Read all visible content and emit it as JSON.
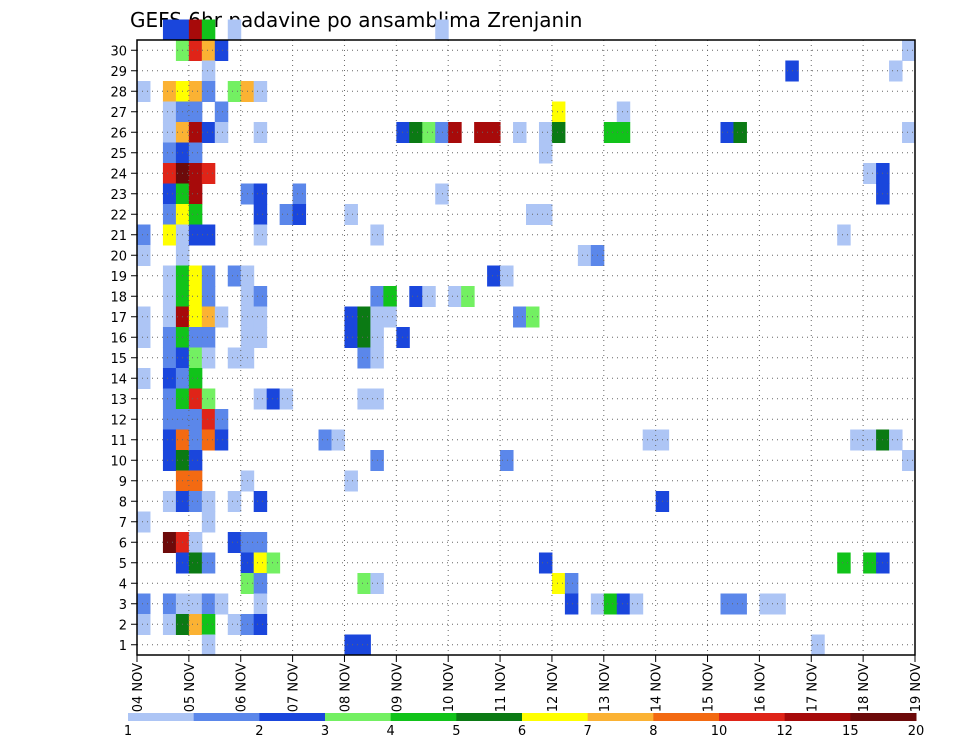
{
  "chart_data": {
    "type": "heatmap",
    "title": "GEFS 6hr padavine po ansamblima Zrenjanin",
    "x_ticks": [
      "04 NOV",
      "05 NOV",
      "06 NOV",
      "07 NOV",
      "08 NOV",
      "09 NOV",
      "10 NOV",
      "11 NOV",
      "12 NOV",
      "13 NOV",
      "14 NOV",
      "15 NOV",
      "16 NOV",
      "17 NOV",
      "18 NOV",
      "19 NOV"
    ],
    "x_range": [
      0,
      60
    ],
    "y_ticks": [
      1,
      2,
      3,
      4,
      5,
      6,
      7,
      8,
      9,
      10,
      11,
      12,
      13,
      14,
      15,
      16,
      17,
      18,
      19,
      20,
      21,
      22,
      23,
      24,
      25,
      26,
      27,
      28,
      29,
      30
    ],
    "y_range": [
      0,
      30
    ],
    "grid": true,
    "legend_position": "bottom",
    "color_bins": [
      {
        "color": "#adc5f5"
      },
      {
        "color": "#5b87ea"
      },
      {
        "color": "#1a46dc"
      },
      {
        "color": "#73f062"
      },
      {
        "color": "#11c31a"
      },
      {
        "color": "#0b7a14"
      },
      {
        "color": "#ffff00"
      },
      {
        "color": "#fbb233"
      },
      {
        "color": "#f36a12"
      },
      {
        "color": "#df2418"
      },
      {
        "color": "#a70a0a"
      },
      {
        "color": "#6d0a0a"
      }
    ],
    "colorbar_labels": [
      {
        "label": "1",
        "pos": 0
      },
      {
        "label": "2",
        "pos": 2
      },
      {
        "label": "3",
        "pos": 3
      },
      {
        "label": "4",
        "pos": 4
      },
      {
        "label": "5",
        "pos": 5
      },
      {
        "label": "6",
        "pos": 6
      },
      {
        "label": "7",
        "pos": 7
      },
      {
        "label": "8",
        "pos": 8
      },
      {
        "label": "10",
        "pos": 9
      },
      {
        "label": "12",
        "pos": 10
      },
      {
        "label": "15",
        "pos": 11
      },
      {
        "label": "20",
        "pos": 12
      }
    ],
    "cells": [
      [
        30,
        2,
        2
      ],
      [
        30,
        3,
        2
      ],
      [
        30,
        4,
        10
      ],
      [
        30,
        5,
        4
      ],
      [
        30,
        7,
        0
      ],
      [
        30,
        23,
        0
      ],
      [
        29,
        3,
        3
      ],
      [
        29,
        4,
        9
      ],
      [
        29,
        5,
        7
      ],
      [
        29,
        6,
        2
      ],
      [
        29,
        59,
        0
      ],
      [
        28,
        5,
        0
      ],
      [
        28,
        50,
        2
      ],
      [
        28,
        58,
        0
      ],
      [
        27,
        0,
        0
      ],
      [
        27,
        2,
        7
      ],
      [
        27,
        3,
        6
      ],
      [
        27,
        4,
        7
      ],
      [
        27,
        5,
        1
      ],
      [
        27,
        7,
        3
      ],
      [
        27,
        8,
        7
      ],
      [
        27,
        9,
        0
      ],
      [
        26,
        2,
        0
      ],
      [
        26,
        3,
        1
      ],
      [
        26,
        4,
        1
      ],
      [
        26,
        6,
        1
      ],
      [
        26,
        32,
        6
      ],
      [
        26,
        37,
        0
      ],
      [
        25,
        2,
        0
      ],
      [
        25,
        3,
        7
      ],
      [
        25,
        4,
        10
      ],
      [
        25,
        5,
        2
      ],
      [
        25,
        6,
        0
      ],
      [
        25,
        9,
        0
      ],
      [
        25,
        20,
        2
      ],
      [
        25,
        21,
        5
      ],
      [
        25,
        22,
        3
      ],
      [
        25,
        23,
        1
      ],
      [
        25,
        24,
        10
      ],
      [
        25,
        26,
        10
      ],
      [
        25,
        27,
        10
      ],
      [
        25,
        29,
        0
      ],
      [
        25,
        31,
        0
      ],
      [
        25,
        32,
        5
      ],
      [
        25,
        36,
        4
      ],
      [
        25,
        37,
        4
      ],
      [
        25,
        45,
        2
      ],
      [
        25,
        46,
        5
      ],
      [
        25,
        59,
        0
      ],
      [
        24,
        2,
        1
      ],
      [
        24,
        3,
        2
      ],
      [
        24,
        4,
        1
      ],
      [
        24,
        31,
        0
      ],
      [
        23,
        2,
        9
      ],
      [
        23,
        3,
        11
      ],
      [
        23,
        4,
        10
      ],
      [
        23,
        5,
        9
      ],
      [
        23,
        56,
        0
      ],
      [
        23,
        57,
        2
      ],
      [
        22,
        2,
        2
      ],
      [
        22,
        3,
        4
      ],
      [
        22,
        4,
        10
      ],
      [
        22,
        8,
        1
      ],
      [
        22,
        9,
        2
      ],
      [
        22,
        12,
        1
      ],
      [
        22,
        23,
        0
      ],
      [
        22,
        57,
        2
      ],
      [
        21,
        2,
        1
      ],
      [
        21,
        3,
        6
      ],
      [
        21,
        4,
        4
      ],
      [
        21,
        9,
        2
      ],
      [
        21,
        11,
        1
      ],
      [
        21,
        12,
        2
      ],
      [
        21,
        16,
        0
      ],
      [
        21,
        30,
        0
      ],
      [
        21,
        31,
        0
      ],
      [
        20,
        0,
        1
      ],
      [
        20,
        2,
        6
      ],
      [
        20,
        3,
        0
      ],
      [
        20,
        4,
        2
      ],
      [
        20,
        5,
        2
      ],
      [
        20,
        9,
        0
      ],
      [
        20,
        18,
        0
      ],
      [
        20,
        54,
        0
      ],
      [
        19,
        0,
        0
      ],
      [
        19,
        3,
        0
      ],
      [
        19,
        34,
        0
      ],
      [
        19,
        35,
        1
      ],
      [
        18,
        2,
        0
      ],
      [
        18,
        3,
        4
      ],
      [
        18,
        4,
        6
      ],
      [
        18,
        5,
        1
      ],
      [
        18,
        7,
        1
      ],
      [
        18,
        8,
        0
      ],
      [
        18,
        27,
        2
      ],
      [
        18,
        28,
        0
      ],
      [
        17,
        2,
        0
      ],
      [
        17,
        3,
        4
      ],
      [
        17,
        4,
        6
      ],
      [
        17,
        5,
        1
      ],
      [
        17,
        8,
        0
      ],
      [
        17,
        9,
        1
      ],
      [
        17,
        18,
        1
      ],
      [
        17,
        19,
        4
      ],
      [
        17,
        21,
        2
      ],
      [
        17,
        22,
        0
      ],
      [
        17,
        24,
        0
      ],
      [
        17,
        25,
        3
      ],
      [
        16,
        0,
        0
      ],
      [
        16,
        2,
        0
      ],
      [
        16,
        3,
        10
      ],
      [
        16,
        4,
        6
      ],
      [
        16,
        5,
        7
      ],
      [
        16,
        6,
        0
      ],
      [
        16,
        8,
        0
      ],
      [
        16,
        9,
        0
      ],
      [
        16,
        16,
        2
      ],
      [
        16,
        17,
        5
      ],
      [
        16,
        18,
        0
      ],
      [
        16,
        19,
        0
      ],
      [
        16,
        29,
        1
      ],
      [
        16,
        30,
        3
      ],
      [
        15,
        0,
        0
      ],
      [
        15,
        2,
        1
      ],
      [
        15,
        3,
        4
      ],
      [
        15,
        4,
        1
      ],
      [
        15,
        5,
        1
      ],
      [
        15,
        8,
        0
      ],
      [
        15,
        9,
        0
      ],
      [
        15,
        16,
        2
      ],
      [
        15,
        17,
        5
      ],
      [
        15,
        18,
        0
      ],
      [
        15,
        20,
        2
      ],
      [
        14,
        2,
        1
      ],
      [
        14,
        3,
        2
      ],
      [
        14,
        4,
        3
      ],
      [
        14,
        5,
        0
      ],
      [
        14,
        7,
        0
      ],
      [
        14,
        8,
        0
      ],
      [
        14,
        17,
        1
      ],
      [
        14,
        18,
        0
      ],
      [
        13,
        0,
        0
      ],
      [
        13,
        2,
        2
      ],
      [
        13,
        3,
        1
      ],
      [
        13,
        4,
        4
      ],
      [
        12,
        2,
        1
      ],
      [
        12,
        3,
        4
      ],
      [
        12,
        4,
        9
      ],
      [
        12,
        5,
        3
      ],
      [
        12,
        9,
        0
      ],
      [
        12,
        10,
        2
      ],
      [
        12,
        11,
        0
      ],
      [
        12,
        17,
        0
      ],
      [
        12,
        18,
        0
      ],
      [
        11,
        2,
        1
      ],
      [
        11,
        3,
        1
      ],
      [
        11,
        4,
        1
      ],
      [
        11,
        5,
        9
      ],
      [
        11,
        6,
        1
      ],
      [
        10,
        2,
        2
      ],
      [
        10,
        3,
        8
      ],
      [
        10,
        4,
        1
      ],
      [
        10,
        5,
        8
      ],
      [
        10,
        6,
        2
      ],
      [
        10,
        14,
        1
      ],
      [
        10,
        15,
        0
      ],
      [
        10,
        39,
        0
      ],
      [
        10,
        40,
        0
      ],
      [
        10,
        55,
        0
      ],
      [
        10,
        56,
        0
      ],
      [
        10,
        57,
        5
      ],
      [
        10,
        58,
        0
      ],
      [
        9,
        2,
        2
      ],
      [
        9,
        3,
        5
      ],
      [
        9,
        4,
        2
      ],
      [
        9,
        18,
        1
      ],
      [
        9,
        28,
        1
      ],
      [
        9,
        59,
        0
      ],
      [
        8,
        3,
        8
      ],
      [
        8,
        4,
        8
      ],
      [
        8,
        8,
        0
      ],
      [
        8,
        16,
        0
      ],
      [
        7,
        2,
        0
      ],
      [
        7,
        3,
        2
      ],
      [
        7,
        4,
        1
      ],
      [
        7,
        5,
        0
      ],
      [
        7,
        7,
        0
      ],
      [
        7,
        9,
        2
      ],
      [
        7,
        40,
        2
      ],
      [
        6,
        0,
        0
      ],
      [
        6,
        5,
        0
      ],
      [
        5,
        2,
        11
      ],
      [
        5,
        3,
        9
      ],
      [
        5,
        4,
        0
      ],
      [
        5,
        7,
        2
      ],
      [
        5,
        8,
        1
      ],
      [
        5,
        9,
        1
      ],
      [
        4,
        3,
        2
      ],
      [
        4,
        4,
        5
      ],
      [
        4,
        5,
        1
      ],
      [
        4,
        8,
        2
      ],
      [
        4,
        9,
        6
      ],
      [
        4,
        10,
        3
      ],
      [
        4,
        31,
        2
      ],
      [
        4,
        54,
        4
      ],
      [
        4,
        56,
        4
      ],
      [
        4,
        57,
        2
      ],
      [
        3,
        8,
        3
      ],
      [
        3,
        9,
        1
      ],
      [
        3,
        17,
        3
      ],
      [
        3,
        18,
        0
      ],
      [
        3,
        32,
        6
      ],
      [
        3,
        33,
        1
      ],
      [
        2,
        0,
        1
      ],
      [
        2,
        2,
        1
      ],
      [
        2,
        3,
        0
      ],
      [
        2,
        4,
        0
      ],
      [
        2,
        5,
        1
      ],
      [
        2,
        6,
        0
      ],
      [
        2,
        9,
        0
      ],
      [
        2,
        33,
        2
      ],
      [
        2,
        35,
        0
      ],
      [
        2,
        36,
        4
      ],
      [
        2,
        37,
        2
      ],
      [
        2,
        38,
        0
      ],
      [
        2,
        45,
        1
      ],
      [
        2,
        46,
        1
      ],
      [
        2,
        48,
        0
      ],
      [
        2,
        49,
        0
      ],
      [
        1,
        0,
        0
      ],
      [
        1,
        2,
        0
      ],
      [
        1,
        3,
        5
      ],
      [
        1,
        4,
        7
      ],
      [
        1,
        5,
        4
      ],
      [
        1,
        7,
        0
      ],
      [
        1,
        8,
        1
      ],
      [
        1,
        9,
        2
      ],
      [
        0,
        5,
        0
      ],
      [
        0,
        16,
        2
      ],
      [
        0,
        17,
        2
      ],
      [
        0,
        52,
        0
      ]
    ]
  }
}
